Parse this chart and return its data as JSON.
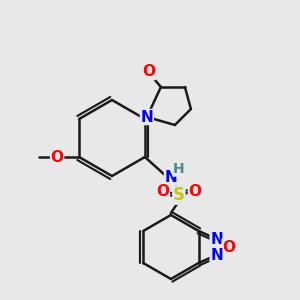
{
  "bg_color": "#e8e8e8",
  "atom_colors": {
    "C": "#000000",
    "N": "#0000ff",
    "O": "#ff0000",
    "S": "#c8c800",
    "H": "#4a8a8a"
  },
  "line_color": "#1a1a1a",
  "line_width": 1.8,
  "font_size_atom": 11,
  "fig_size": [
    3.0,
    3.0
  ],
  "dpi": 100
}
